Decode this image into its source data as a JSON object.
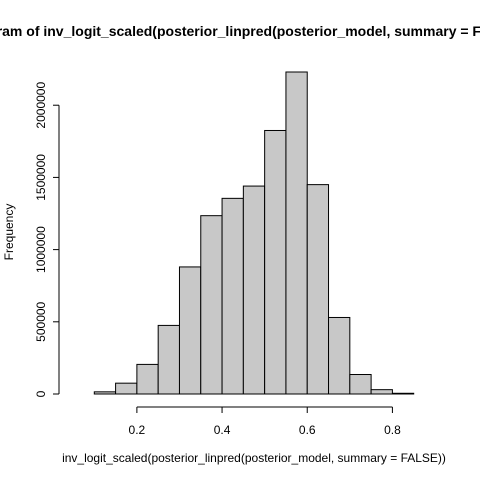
{
  "chart_data": {
    "type": "bar",
    "title": "Histogram of inv_logit_scaled(posterior_linpred(posterior_model, summary = FALSE))",
    "xlabel": "inv_logit_scaled(posterior_linpred(posterior_model, summary = FALSE))",
    "ylabel": "Frequency",
    "bin_edges": [
      0.05,
      0.1,
      0.15,
      0.2,
      0.25,
      0.3,
      0.35,
      0.4,
      0.45,
      0.5,
      0.55,
      0.6,
      0.65,
      0.7,
      0.75,
      0.8,
      0.85,
      0.9
    ],
    "values": [
      0,
      15000,
      75000,
      205000,
      475000,
      880000,
      1235000,
      1355000,
      1440000,
      1825000,
      2230000,
      1450000,
      530000,
      135000,
      30000,
      5000,
      0
    ],
    "xlim": [
      0.05,
      0.9
    ],
    "ylim": [
      0,
      2230000
    ],
    "x_ticks": [
      "0.2",
      "0.4",
      "0.6",
      "0.8"
    ],
    "y_ticks": [
      "0",
      "500000",
      "1000000",
      "1500000",
      "2000000"
    ],
    "grid": false,
    "bar_fill": "#c8c8c8",
    "bar_stroke": "#000000"
  }
}
